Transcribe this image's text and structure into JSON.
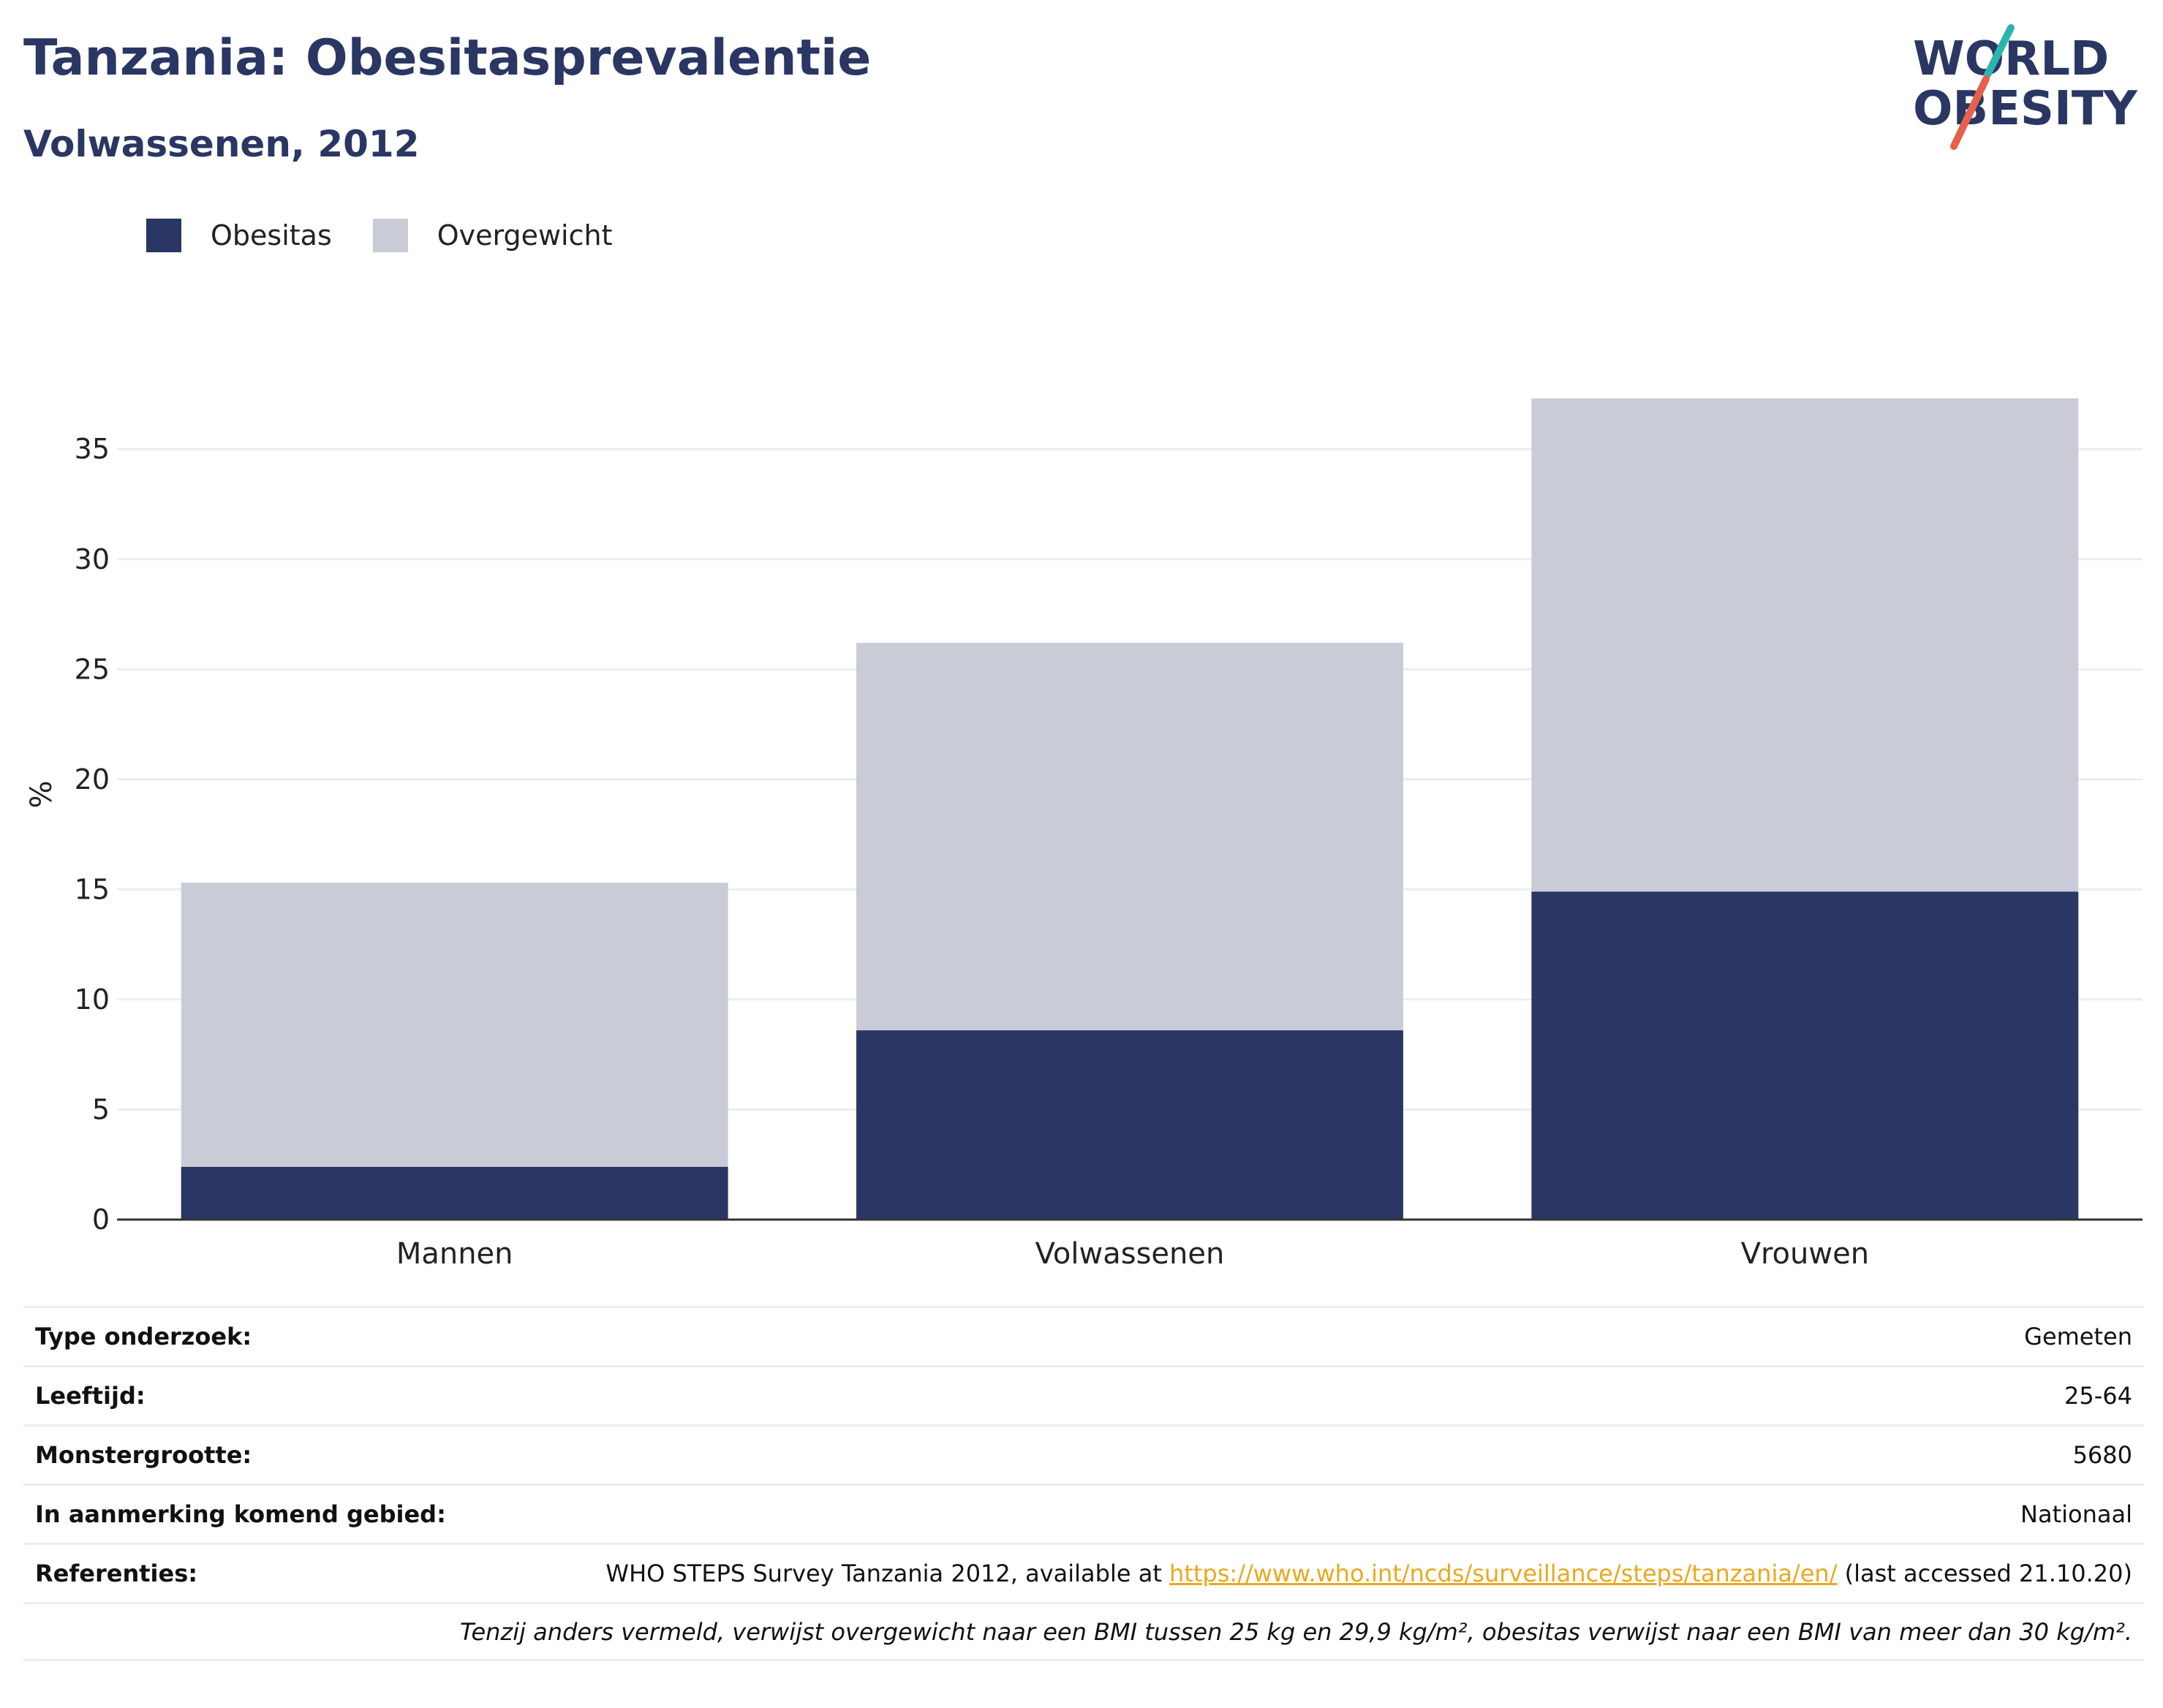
{
  "header": {
    "title": "Tanzania: Obesitasprevalentie",
    "subtitle": "Volwassenen, 2012"
  },
  "logo": {
    "line1": "WORLD",
    "line2": "OBESITY",
    "colors": {
      "text": "#2a3663",
      "slash_top": "#2bb5ad",
      "slash_bottom": "#e8604c"
    }
  },
  "colors": {
    "obesitas": "#2a3663",
    "overgewicht": "#c9cbd7",
    "grid": "#ecedf3",
    "axis": "#333333"
  },
  "chart_data": {
    "type": "bar",
    "stacked": true,
    "categories": [
      "Mannen",
      "Volwassenen",
      "Vrouwen"
    ],
    "series": [
      {
        "name": "Obesitas",
        "values": [
          2.4,
          8.6,
          14.9
        ],
        "color": "#2a3663"
      },
      {
        "name": "Overgewicht",
        "values": [
          12.9,
          17.6,
          22.4
        ],
        "color": "#c9cbd7"
      }
    ],
    "ylabel": "%",
    "xlabel": "",
    "ylim": [
      0,
      37.3
    ],
    "yticks": [
      0,
      5,
      10,
      15,
      20,
      25,
      30,
      35
    ],
    "grid": true,
    "legend_position": "top-left"
  },
  "info": {
    "rows": [
      {
        "label": "Type onderzoek:",
        "value": "Gemeten"
      },
      {
        "label": "Leeftijd:",
        "value": "25-64"
      },
      {
        "label": "Monstergrootte:",
        "value": "5680"
      },
      {
        "label": "In aanmerking komend gebied:",
        "value": "Nationaal"
      }
    ],
    "references": {
      "label": "Referenties:",
      "prefix": "WHO STEPS Survey Tanzania 2012, available at ",
      "link": "https://www.who.int/ncds/surveillance/steps/tanzania/en/",
      "suffix": " (last accessed 21.10.20)"
    },
    "note": "Tenzij anders vermeld, verwijst overgewicht naar een BMI tussen 25 kg en 29,9 kg/m², obesitas verwijst naar een BMI van meer dan 30 kg/m²."
  }
}
